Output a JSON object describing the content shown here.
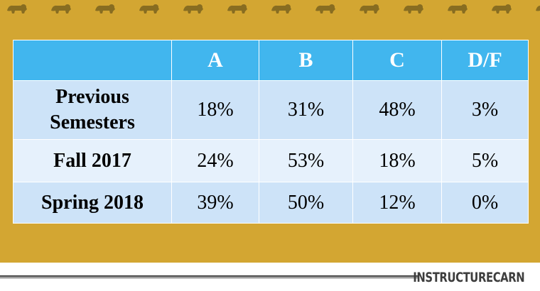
{
  "colors": {
    "background": "#d3a632",
    "header_fill": "#41b6ee",
    "row_dark": "#cde3f8",
    "row_light": "#e6f1fc",
    "footer": "#ffffff"
  },
  "decor": {
    "pattern_icon": "lion-silhouette-icon",
    "pattern_count": 13
  },
  "table": {
    "corner": "",
    "columns": [
      "A",
      "B",
      "C",
      "D/F"
    ],
    "rows": [
      {
        "label_line1": "Previous",
        "label_line2": "Semesters",
        "values": [
          "18%",
          "31%",
          "48%",
          "3%"
        ]
      },
      {
        "label_line1": "Fall 2017",
        "label_line2": "",
        "values": [
          "24%",
          "53%",
          "18%",
          "5%"
        ]
      },
      {
        "label_line1": "Spring 2018",
        "label_line2": "",
        "values": [
          "39%",
          "50%",
          "12%",
          "0%"
        ]
      }
    ]
  },
  "footer": {
    "brand": "INSTRUCTURECARN"
  }
}
